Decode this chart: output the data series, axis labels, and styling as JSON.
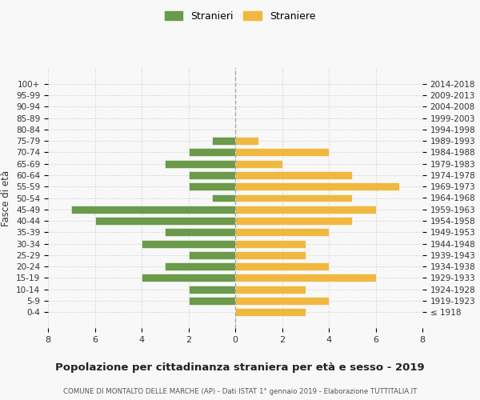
{
  "age_groups": [
    "100+",
    "95-99",
    "90-94",
    "85-89",
    "80-84",
    "75-79",
    "70-74",
    "65-69",
    "60-64",
    "55-59",
    "50-54",
    "45-49",
    "40-44",
    "35-39",
    "30-34",
    "25-29",
    "20-24",
    "15-19",
    "10-14",
    "5-9",
    "0-4"
  ],
  "birth_years": [
    "≤ 1918",
    "1919-1923",
    "1924-1928",
    "1929-1933",
    "1934-1938",
    "1939-1943",
    "1944-1948",
    "1949-1953",
    "1954-1958",
    "1959-1963",
    "1964-1968",
    "1969-1973",
    "1974-1978",
    "1979-1983",
    "1984-1988",
    "1989-1993",
    "1994-1998",
    "1999-2003",
    "2004-2008",
    "2009-2013",
    "2014-2018"
  ],
  "males": [
    0,
    0,
    0,
    0,
    0,
    1,
    2,
    3,
    2,
    2,
    1,
    7,
    6,
    3,
    4,
    2,
    3,
    4,
    2,
    2,
    0
  ],
  "females": [
    0,
    0,
    0,
    0,
    0,
    1,
    4,
    2,
    5,
    7,
    5,
    6,
    5,
    4,
    3,
    3,
    4,
    6,
    3,
    4,
    3
  ],
  "male_color": "#6a9a4a",
  "female_color": "#f0b840",
  "title": "Popolazione per cittadinanza straniera per età e sesso - 2019",
  "subtitle": "COMUNE DI MONTALTO DELLE MARCHE (AP) - Dati ISTAT 1° gennaio 2019 - Elaborazione TUTTITALIA.IT",
  "ylabel_left": "Fasce di età",
  "legend_male": "Stranieri",
  "legend_female": "Straniere",
  "xlim": 8,
  "background_color": "#f8f8f8",
  "grid_color": "#cccccc"
}
